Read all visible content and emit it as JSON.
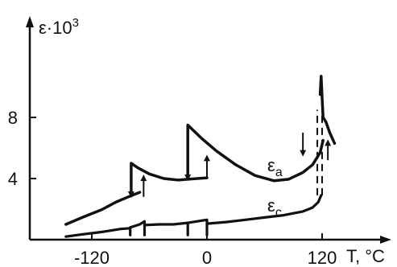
{
  "chart_data": {
    "type": "line",
    "title": "",
    "xlabel": "T, °C",
    "ylabel": "ε·10",
    "ylabel_exponent": "3",
    "xlim": [
      -150,
      142
    ],
    "ylim": [
      0,
      14
    ],
    "x_ticks": [
      -120,
      0,
      120
    ],
    "x_tick_labels": [
      "-120",
      "0",
      "120"
    ],
    "y_ticks": [
      4,
      8
    ],
    "y_tick_labels": [
      "4",
      "8"
    ],
    "grid": false,
    "legend": "none",
    "series": [
      {
        "name": "εa",
        "label_base": "ε",
        "label_sub": "a",
        "segments": [
          [
            [
              -147,
              1.0
            ],
            [
              -130,
              1.45
            ],
            [
              -110,
              1.95
            ],
            [
              -95,
              2.45
            ],
            [
              -80,
              2.85
            ],
            [
              -70,
              3.1
            ]
          ],
          [
            [
              -79,
              2.85
            ],
            [
              -79,
              5.0
            ],
            [
              -72,
              4.7
            ],
            [
              -60,
              4.3
            ],
            [
              -45,
              4.0
            ],
            [
              -30,
              3.9
            ],
            [
              -20,
              3.95
            ],
            [
              -10,
              4.0
            ],
            [
              0,
              4.05
            ]
          ],
          [
            [
              -20,
              3.95
            ],
            [
              -20,
              7.5
            ],
            [
              -5,
              6.6
            ],
            [
              10,
              5.8
            ],
            [
              30,
              4.9
            ],
            [
              50,
              4.2
            ],
            [
              70,
              3.85
            ],
            [
              85,
              3.95
            ],
            [
              100,
              4.4
            ],
            [
              110,
              4.9
            ],
            [
              118,
              5.7
            ],
            [
              121,
              6.5
            ]
          ],
          [
            [
              118,
              9.5
            ],
            [
              119,
              10.7
            ],
            [
              120,
              9.3
            ],
            [
              121,
              8.0
            ],
            [
              124,
              7.7
            ],
            [
              128,
              7.0
            ],
            [
              133,
              6.3
            ]
          ]
        ],
        "arrows": [
          {
            "x": -79,
            "from": 4.3,
            "to": 2.9,
            "dir": "down"
          },
          {
            "x": -66,
            "from": 2.8,
            "to": 4.1,
            "dir": "up"
          },
          {
            "x": -20,
            "from": 6.0,
            "to": 4.0,
            "dir": "down"
          },
          {
            "x": 0,
            "from": 4.1,
            "to": 5.4,
            "dir": "up"
          },
          {
            "x": 100,
            "from": 7.0,
            "to": 5.6,
            "dir": "down"
          },
          {
            "x": 126,
            "from": 5.2,
            "to": 6.4,
            "dir": "up"
          }
        ],
        "dashed_links": [
          {
            "x": 115,
            "from": 2.9,
            "to": 8.5
          },
          {
            "x": 120,
            "from": 2.9,
            "to": 8.5
          }
        ]
      },
      {
        "name": "εc",
        "label_base": "ε",
        "label_sub": "c",
        "segments": [
          [
            [
              -147,
              0.2
            ],
            [
              -130,
              0.35
            ],
            [
              -110,
              0.5
            ],
            [
              -90,
              0.7
            ],
            [
              -80,
              0.75
            ]
          ],
          [
            [
              -80,
              0.3
            ],
            [
              -80,
              0.8
            ],
            [
              -70,
              1.0
            ],
            [
              -65,
              1.2
            ],
            [
              -65,
              0.3
            ]
          ],
          [
            [
              -65,
              0.95
            ],
            [
              -50,
              1.0
            ],
            [
              -35,
              1.0
            ],
            [
              -20,
              1.1
            ]
          ],
          [
            [
              -20,
              0.3
            ],
            [
              -20,
              1.1
            ],
            [
              -10,
              1.2
            ],
            [
              0,
              1.3
            ],
            [
              0,
              0.3
            ]
          ],
          [
            [
              0,
              1.05
            ],
            [
              20,
              1.15
            ],
            [
              40,
              1.3
            ],
            [
              60,
              1.45
            ],
            [
              80,
              1.6
            ],
            [
              100,
              1.85
            ],
            [
              110,
              2.1
            ],
            [
              116,
              2.45
            ],
            [
              119,
              2.9
            ]
          ]
        ]
      }
    ]
  }
}
